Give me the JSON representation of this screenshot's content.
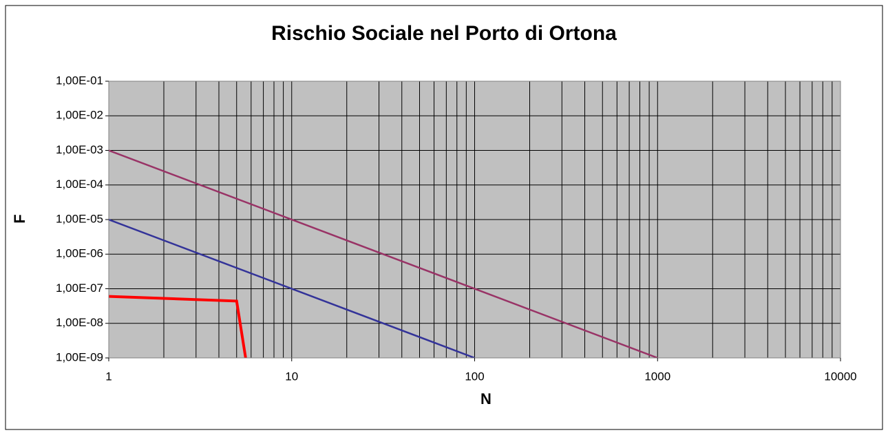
{
  "chart_data": {
    "type": "line",
    "title": "Rischio Sociale nel Porto di Ortona",
    "xlabel": "N",
    "ylabel": "F",
    "xscale": "log",
    "yscale": "log",
    "grid": true,
    "xlim": [
      1,
      10000
    ],
    "xticks": [
      1,
      10,
      100,
      1000,
      10000
    ],
    "ylim": [
      1e-09,
      0.1
    ],
    "yticks": [
      {
        "value": 0.1,
        "label": "1,00E-01"
      },
      {
        "value": 0.01,
        "label": "1,00E-02"
      },
      {
        "value": 0.001,
        "label": "1,00E-03"
      },
      {
        "value": 0.0001,
        "label": "1,00E-04"
      },
      {
        "value": 1e-05,
        "label": "1,00E-05"
      },
      {
        "value": 1e-06,
        "label": "1,00E-06"
      },
      {
        "value": 1e-07,
        "label": "1,00E-07"
      },
      {
        "value": 1e-08,
        "label": "1,00E-08"
      },
      {
        "value": 1e-09,
        "label": "1,00E-09"
      }
    ],
    "series": [
      {
        "color": "#993366",
        "x": [
          1,
          1000
        ],
        "values": [
          0.001,
          1e-09
        ]
      },
      {
        "color": "#333399",
        "x": [
          1,
          100
        ],
        "values": [
          1e-05,
          1e-09
        ]
      },
      {
        "color": "#ff0000",
        "x": [
          1,
          5,
          5.6
        ],
        "values": [
          6e-08,
          4.4e-08,
          1e-09
        ]
      }
    ]
  }
}
